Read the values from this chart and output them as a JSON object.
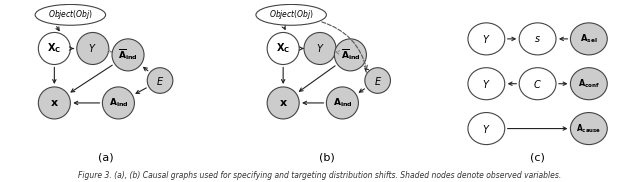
{
  "background_color": "#ffffff",
  "node_color_white": "#ffffff",
  "node_color_gray": "#cccccc",
  "node_edge_color": "#444444",
  "panel_labels": [
    "(a)",
    "(b)",
    "(c)"
  ],
  "panel_label_fontsize": 8,
  "caption": "Figure 3. (a), (b) Causal graphs used for specifying and targeting distribution shifts. Shaded nodes denote observed variables.",
  "caption_fontsize": 5.5
}
